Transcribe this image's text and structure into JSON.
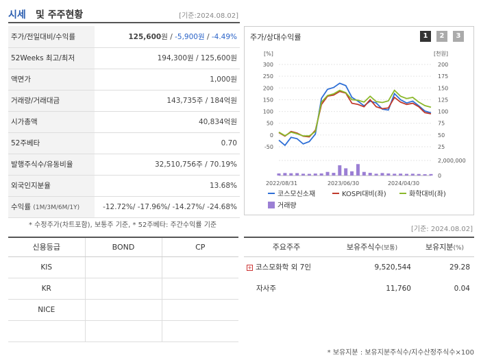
{
  "header": {
    "title_blue": "시세",
    "title_rest": "및 주주현황",
    "date": "[기준:2024.08.02]"
  },
  "price_rows": [
    {
      "key": "price",
      "label": "주가/전일대비/수익률",
      "price": "125,600",
      "unit": "원",
      "sep1": " / ",
      "change": "-5,900",
      "change_unit": "원",
      "sep2": " / ",
      "rate": "-4.49%"
    },
    {
      "key": "w52",
      "label": "52Weeks 최고/최저",
      "value": "194,300원 / 125,600원"
    },
    {
      "key": "par",
      "label": "액면가",
      "value": "1,000원"
    },
    {
      "key": "volume",
      "label": "거래량/거래대금",
      "value": "143,735주 / 184억원"
    },
    {
      "key": "mcap",
      "label": "시가총액",
      "value": "40,834억원"
    },
    {
      "key": "beta",
      "label": "52주베타",
      "value": "0.70"
    },
    {
      "key": "shares",
      "label": "발행주식수/유동비율",
      "value": "32,510,756주 / 70.19%"
    },
    {
      "key": "foreign",
      "label": "외국인지분율",
      "value": "13.68%"
    },
    {
      "key": "returns",
      "label": "수익률",
      "label_small": "(1M/3M/6M/1Y)",
      "value": "-12.72%/ -17.96%/ -14.27%/ -24.68%"
    }
  ],
  "chart_box": {
    "title": "주가/상대수익률",
    "pages": [
      "1",
      "2",
      "3"
    ]
  },
  "chart_data": {
    "type": "line",
    "left_axis_label": "[%]",
    "right_axis_label": "[천원]",
    "left_ticks": [
      "300",
      "250",
      "200",
      "150",
      "100",
      "50",
      "0",
      "-50"
    ],
    "right_ticks": [
      "200",
      "175",
      "150",
      "125",
      "100",
      "75",
      "50",
      "25"
    ],
    "volume_ticks": [
      "2,000,000",
      "0"
    ],
    "x_labels": [
      "2022/08/31",
      "2023/06/30",
      "2024/04/30"
    ],
    "left_ylim": [
      -50,
      300
    ],
    "right_ylim": [
      25,
      200
    ],
    "series": [
      {
        "name": "코스모신소재",
        "color": "#2e6fd6",
        "axis": "right",
        "values": [
          39,
          28,
          45,
          42,
          31,
          36,
          52,
          128,
          147,
          151,
          160,
          155,
          130,
          122,
          112,
          122,
          118,
          105,
          103,
          138,
          125,
          118,
          122,
          112,
          101,
          97
        ]
      },
      {
        "name": "KOSPI대비(좌)",
        "color": "#c0392b",
        "axis": "left",
        "values": [
          10,
          -5,
          15,
          8,
          -5,
          -8,
          20,
          130,
          165,
          170,
          185,
          178,
          135,
          130,
          120,
          150,
          120,
          112,
          115,
          160,
          140,
          130,
          135,
          120,
          95,
          90
        ]
      },
      {
        "name": "화학대비(좌)",
        "color": "#8bb82b",
        "axis": "left",
        "values": [
          12,
          -3,
          12,
          5,
          -4,
          -4,
          15,
          140,
          168,
          175,
          190,
          180,
          150,
          148,
          140,
          165,
          142,
          138,
          145,
          190,
          165,
          155,
          160,
          140,
          125,
          118
        ]
      }
    ],
    "volume": {
      "name": "거래량",
      "color": "#9b7fd4",
      "ymax": 2500000,
      "values": [
        350000,
        420000,
        380000,
        400000,
        300000,
        280000,
        330000,
        350000,
        600000,
        450000,
        1700000,
        1200000,
        700000,
        1900000,
        600000,
        450000,
        300000,
        420000,
        350000,
        300000,
        320000,
        280000,
        300000,
        260000,
        220000,
        250000
      ]
    }
  },
  "notes": {
    "chart_note": "* 수정주가(차트포함), 보통주 기준, * 52주베타: 주간수익률 기준",
    "date2": "[기준: 2024.08.02]",
    "holders_note": "* 보유지분 : 보유지분주식수/지수산정주식수×100"
  },
  "credit": {
    "headers": [
      "신용등급",
      "BOND",
      "CP"
    ],
    "rows": [
      [
        "KIS",
        "",
        ""
      ],
      [
        "KR",
        "",
        ""
      ],
      [
        "NICE",
        "",
        ""
      ],
      [
        "",
        "",
        ""
      ]
    ]
  },
  "holders": {
    "h1": "주요주주",
    "h2": "보유주식수",
    "h2_small": "(보통)",
    "h3": "보유지분",
    "h3_small": "(%)",
    "rows": [
      {
        "name": "코스모화학 외 7인",
        "shares": "9,520,544",
        "pct": "29.28",
        "expand": "+"
      },
      {
        "name": "자사주",
        "shares": "11,760",
        "pct": "0.04",
        "expand": ""
      }
    ]
  },
  "colors": {
    "accent_blue": "#2a63c8",
    "page1_bg": "#333333",
    "page_bg": "#aaaaaa"
  }
}
